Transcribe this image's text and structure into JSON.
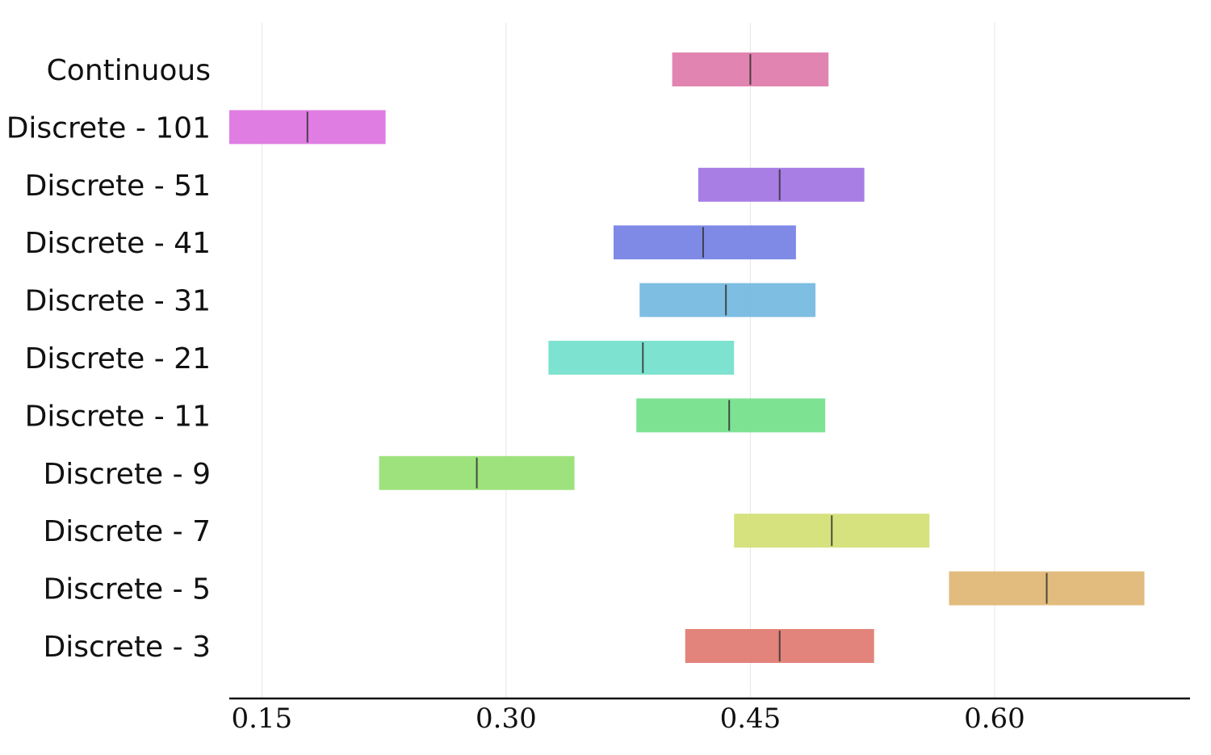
{
  "chart_data": {
    "type": "interval",
    "title": "",
    "xlabel": "",
    "ylabel": "",
    "xlim": [
      0.13,
      0.72
    ],
    "xticks": [
      0.15,
      0.3,
      0.45,
      0.6
    ],
    "xtick_labels": [
      "0.15",
      "0.30",
      "0.45",
      "0.60"
    ],
    "grid": "vertical",
    "categories": [
      "Continuous",
      "Discrete - 101",
      "Discrete - 51",
      "Discrete - 41",
      "Discrete - 31",
      "Discrete - 21",
      "Discrete - 11",
      "Discrete - 9",
      "Discrete - 7",
      "Discrete - 5",
      "Discrete - 3"
    ],
    "intervals": [
      {
        "low": 0.402,
        "mid": 0.45,
        "high": 0.498
      },
      {
        "low": 0.13,
        "mid": 0.178,
        "high": 0.226
      },
      {
        "low": 0.418,
        "mid": 0.468,
        "high": 0.52
      },
      {
        "low": 0.366,
        "mid": 0.421,
        "high": 0.478
      },
      {
        "low": 0.382,
        "mid": 0.435,
        "high": 0.49
      },
      {
        "low": 0.326,
        "mid": 0.384,
        "high": 0.44
      },
      {
        "low": 0.38,
        "mid": 0.437,
        "high": 0.496
      },
      {
        "low": 0.222,
        "mid": 0.282,
        "high": 0.342
      },
      {
        "low": 0.44,
        "mid": 0.5,
        "high": 0.56
      },
      {
        "low": 0.572,
        "mid": 0.632,
        "high": 0.692
      },
      {
        "low": 0.41,
        "mid": 0.468,
        "high": 0.526
      }
    ],
    "colors": [
      "#e07aaa",
      "#dd72e0",
      "#a173e3",
      "#7380e3",
      "#73b9e0",
      "#73e0cc",
      "#73e08a",
      "#96e073",
      "#d2e073",
      "#e0b673",
      "#e07a70"
    ]
  }
}
